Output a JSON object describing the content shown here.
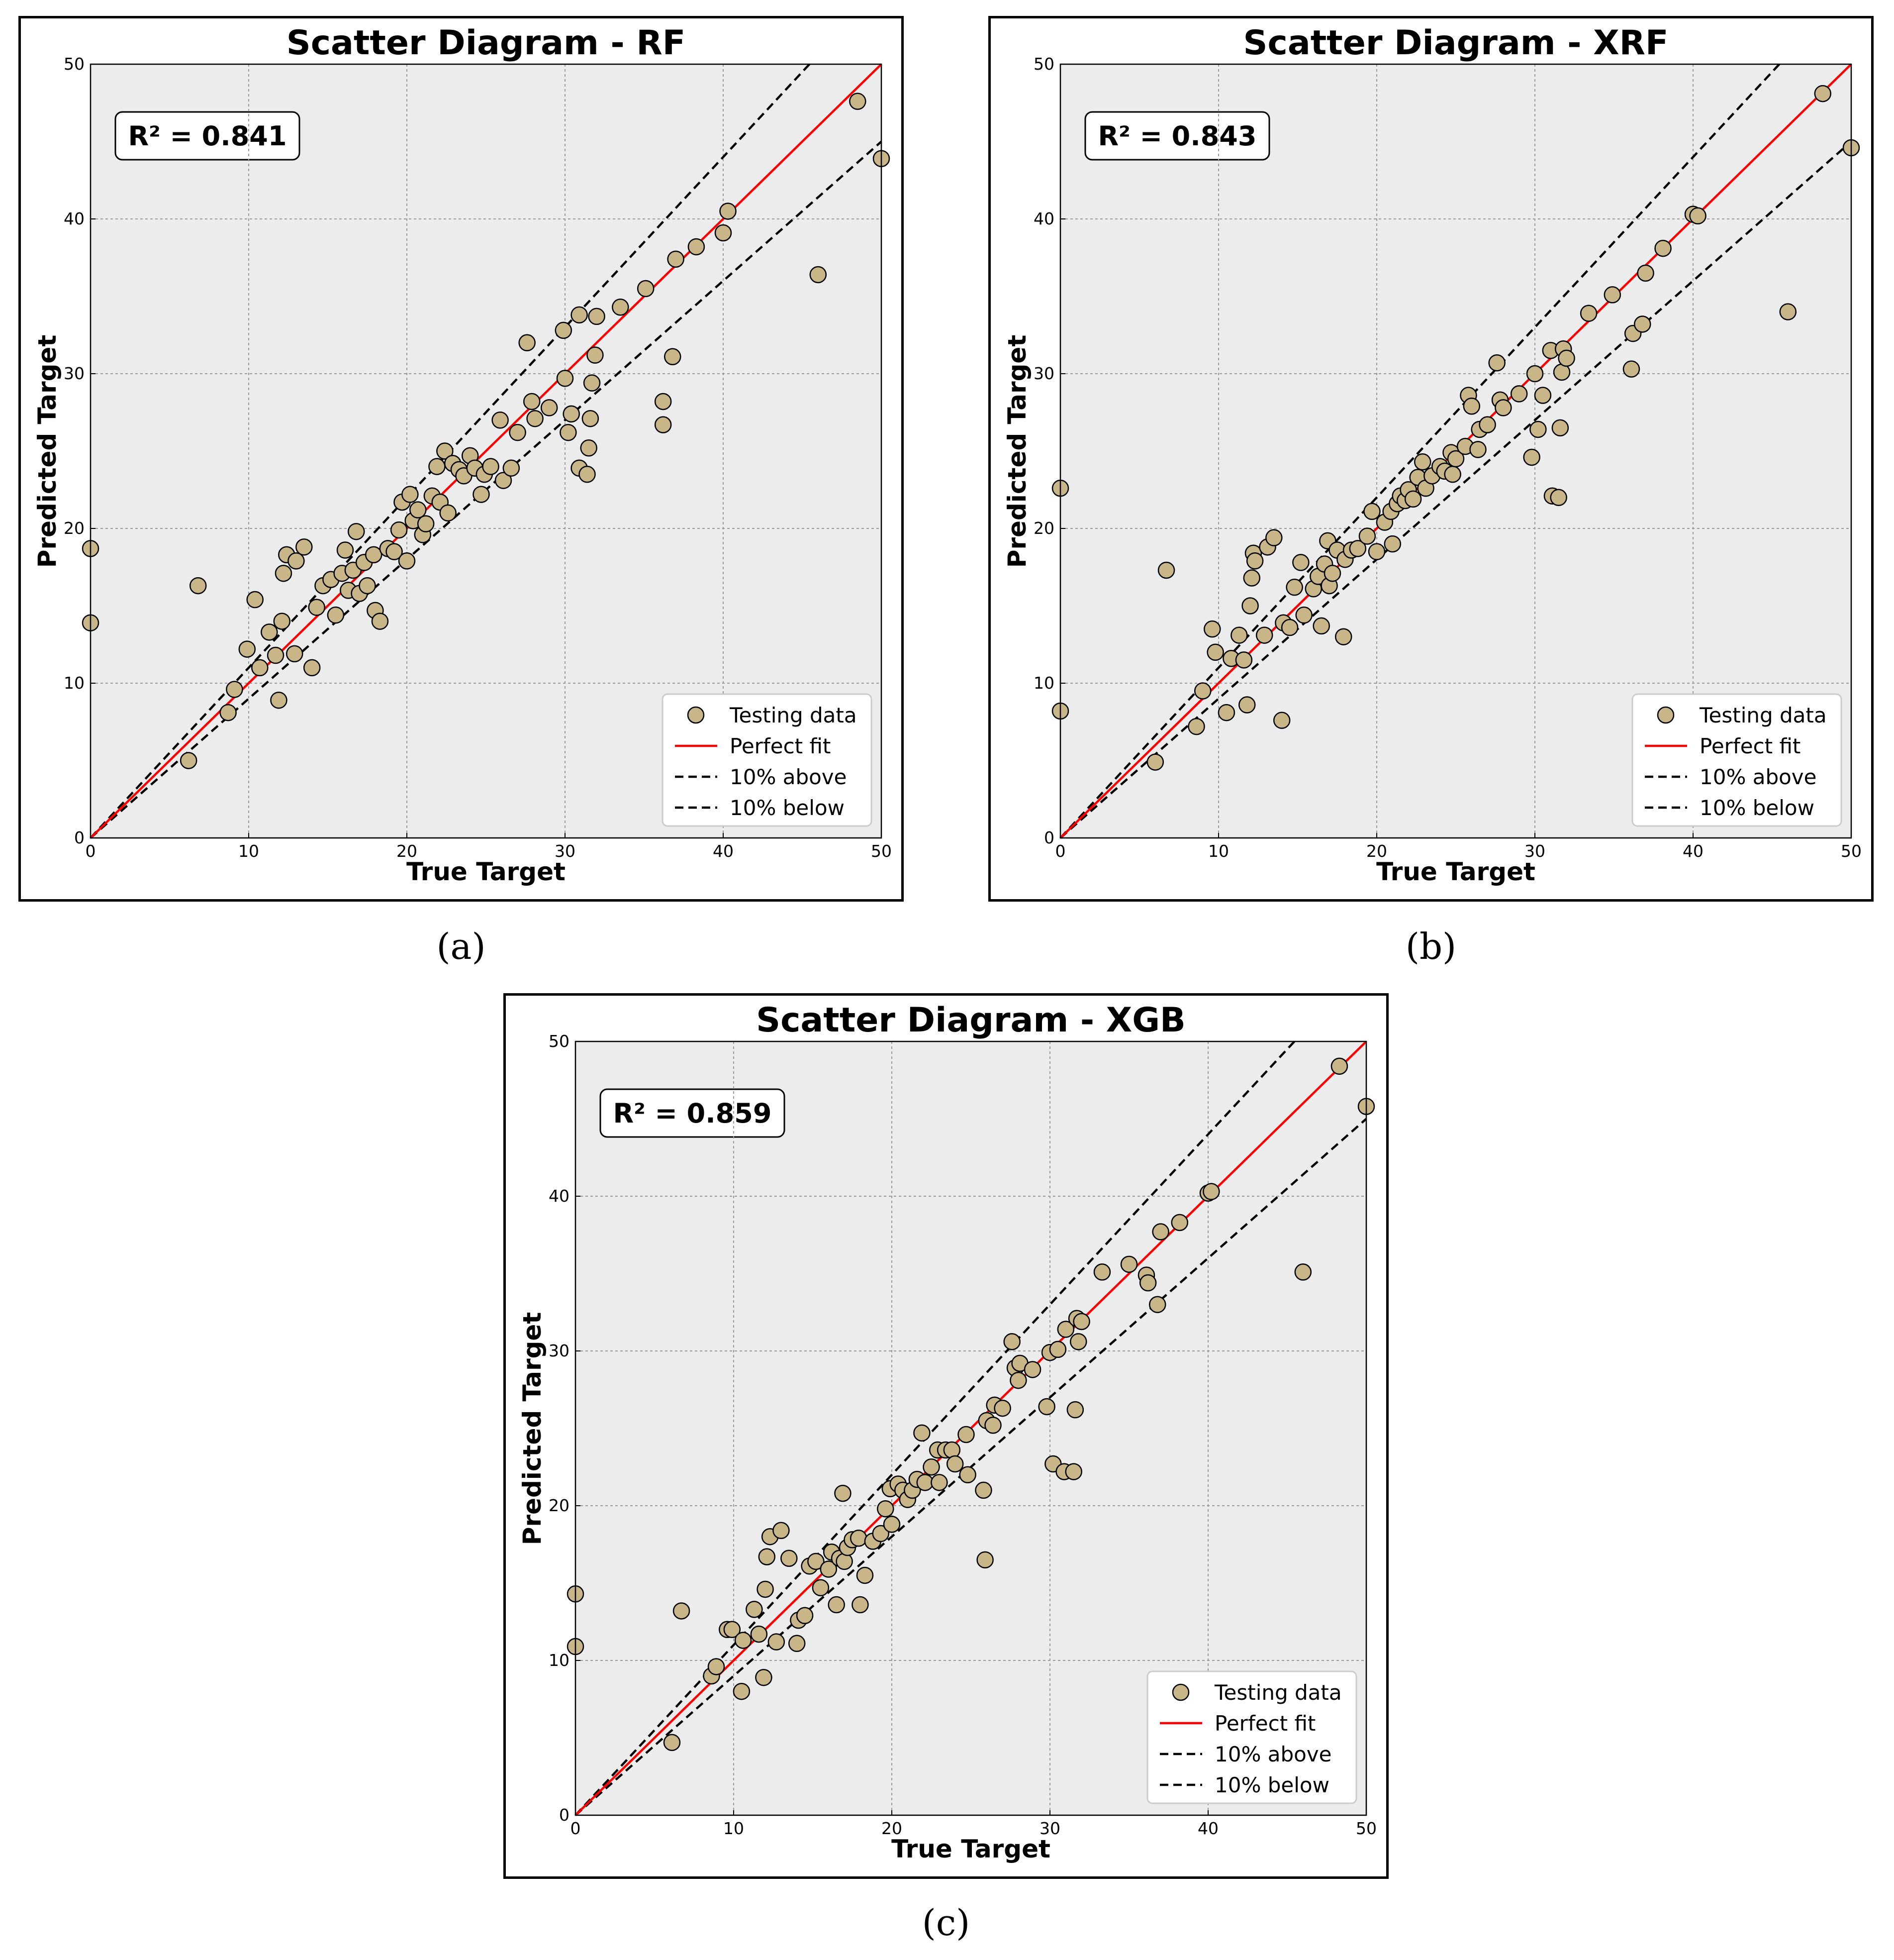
{
  "colors": {
    "plot_bg": "#ececec",
    "grid": "#9a9a9a",
    "marker_fill": "#c8b689",
    "marker_edge": "#000000",
    "perfect_fit": "#ff0000",
    "band": "#000000"
  },
  "chart_data": [
    {
      "type": "scatter",
      "caption": "(a)",
      "title": "Scatter Diagram - RF",
      "xlabel": "True Target",
      "ylabel": "Predicted Target",
      "xlim": [
        0,
        50
      ],
      "ylim": [
        0,
        50
      ],
      "xticks": [
        "0",
        "10",
        "20",
        "30",
        "40",
        "50"
      ],
      "yticks": [
        "0",
        "10",
        "20",
        "30",
        "40",
        "50"
      ],
      "annotation": "R² = 0.841",
      "legend": {
        "placement": "lower-right",
        "entries": [
          "Testing data",
          "Perfect fit",
          "10% above",
          "10% below"
        ]
      },
      "points": [
        [
          0,
          18.7
        ],
        [
          0,
          13.9
        ],
        [
          6.2,
          5.0
        ],
        [
          6.8,
          16.3
        ],
        [
          8.7,
          8.1
        ],
        [
          9.1,
          9.6
        ],
        [
          9.9,
          12.2
        ],
        [
          10.4,
          15.4
        ],
        [
          10.7,
          11.0
        ],
        [
          11.3,
          13.3
        ],
        [
          11.7,
          11.8
        ],
        [
          11.9,
          8.9
        ],
        [
          12.1,
          14.0
        ],
        [
          12.2,
          17.1
        ],
        [
          12.4,
          18.3
        ],
        [
          12.9,
          11.9
        ],
        [
          13.0,
          17.9
        ],
        [
          13.5,
          18.8
        ],
        [
          14.0,
          11.0
        ],
        [
          14.3,
          14.9
        ],
        [
          14.7,
          16.3
        ],
        [
          15.2,
          16.7
        ],
        [
          15.5,
          14.4
        ],
        [
          15.9,
          17.1
        ],
        [
          16.1,
          18.6
        ],
        [
          16.3,
          16.0
        ],
        [
          16.6,
          17.3
        ],
        [
          16.8,
          19.8
        ],
        [
          17.0,
          15.8
        ],
        [
          17.3,
          17.8
        ],
        [
          17.5,
          16.3
        ],
        [
          17.9,
          18.3
        ],
        [
          18.0,
          14.7
        ],
        [
          18.3,
          14.0
        ],
        [
          18.8,
          18.7
        ],
        [
          19.2,
          18.5
        ],
        [
          19.5,
          19.9
        ],
        [
          19.7,
          21.7
        ],
        [
          20.0,
          17.9
        ],
        [
          20.2,
          22.2
        ],
        [
          20.4,
          20.5
        ],
        [
          20.7,
          21.2
        ],
        [
          21.0,
          19.6
        ],
        [
          21.2,
          20.3
        ],
        [
          21.6,
          22.1
        ],
        [
          21.9,
          24.0
        ],
        [
          22.1,
          21.7
        ],
        [
          22.4,
          25.0
        ],
        [
          22.6,
          21.0
        ],
        [
          22.9,
          24.2
        ],
        [
          23.3,
          23.8
        ],
        [
          23.6,
          23.4
        ],
        [
          24.0,
          24.7
        ],
        [
          24.3,
          23.9
        ],
        [
          24.7,
          22.2
        ],
        [
          24.9,
          23.5
        ],
        [
          25.3,
          24.0
        ],
        [
          25.9,
          27.0
        ],
        [
          26.1,
          23.1
        ],
        [
          26.6,
          23.9
        ],
        [
          27.0,
          26.2
        ],
        [
          27.6,
          32.0
        ],
        [
          27.9,
          28.2
        ],
        [
          28.1,
          27.1
        ],
        [
          29.0,
          27.8
        ],
        [
          29.9,
          32.8
        ],
        [
          30.0,
          29.7
        ],
        [
          30.2,
          26.2
        ],
        [
          30.4,
          27.4
        ],
        [
          30.9,
          23.9
        ],
        [
          30.9,
          33.8
        ],
        [
          31.4,
          23.5
        ],
        [
          31.5,
          25.2
        ],
        [
          31.6,
          27.1
        ],
        [
          31.7,
          29.4
        ],
        [
          31.9,
          31.2
        ],
        [
          32.0,
          33.7
        ],
        [
          33.5,
          34.3
        ],
        [
          35.1,
          35.5
        ],
        [
          36.2,
          28.2
        ],
        [
          36.2,
          26.7
        ],
        [
          36.8,
          31.1
        ],
        [
          37.0,
          37.4
        ],
        [
          38.3,
          38.2
        ],
        [
          40.0,
          39.1
        ],
        [
          40.3,
          40.5
        ],
        [
          46.0,
          36.4
        ],
        [
          48.5,
          47.6
        ],
        [
          50.0,
          43.9
        ]
      ]
    },
    {
      "type": "scatter",
      "caption": "(b)",
      "title": "Scatter Diagram - XRF",
      "xlabel": "True Target",
      "ylabel": "Predicted Target",
      "xlim": [
        0,
        50
      ],
      "ylim": [
        0,
        50
      ],
      "xticks": [
        "0",
        "10",
        "20",
        "30",
        "40",
        "50"
      ],
      "yticks": [
        "0",
        "10",
        "20",
        "30",
        "40",
        "50"
      ],
      "annotation": "R² = 0.843",
      "legend": {
        "placement": "lower-right",
        "entries": [
          "Testing data",
          "Perfect fit",
          "10% above",
          "10% below"
        ]
      },
      "points": [
        [
          0,
          22.6
        ],
        [
          0,
          8.2
        ],
        [
          6.0,
          4.9
        ],
        [
          6.7,
          17.3
        ],
        [
          8.6,
          7.2
        ],
        [
          9.0,
          9.5
        ],
        [
          9.6,
          13.5
        ],
        [
          9.8,
          12.0
        ],
        [
          10.5,
          8.1
        ],
        [
          10.8,
          11.6
        ],
        [
          11.3,
          13.1
        ],
        [
          11.6,
          11.5
        ],
        [
          11.8,
          8.6
        ],
        [
          12.0,
          15.0
        ],
        [
          12.1,
          16.8
        ],
        [
          12.2,
          18.4
        ],
        [
          12.3,
          17.9
        ],
        [
          12.9,
          13.1
        ],
        [
          13.1,
          18.8
        ],
        [
          13.5,
          19.4
        ],
        [
          14.0,
          7.6
        ],
        [
          14.1,
          13.9
        ],
        [
          14.5,
          13.6
        ],
        [
          14.8,
          16.2
        ],
        [
          15.2,
          17.8
        ],
        [
          15.4,
          14.4
        ],
        [
          16.0,
          16.1
        ],
        [
          16.3,
          16.9
        ],
        [
          16.5,
          13.7
        ],
        [
          16.7,
          17.7
        ],
        [
          16.9,
          19.2
        ],
        [
          17.0,
          16.3
        ],
        [
          17.2,
          17.1
        ],
        [
          17.5,
          18.6
        ],
        [
          17.9,
          13.0
        ],
        [
          18.0,
          18.0
        ],
        [
          18.4,
          18.6
        ],
        [
          18.8,
          18.7
        ],
        [
          19.4,
          19.5
        ],
        [
          19.7,
          21.1
        ],
        [
          20.0,
          18.5
        ],
        [
          20.5,
          20.4
        ],
        [
          20.9,
          21.1
        ],
        [
          21.0,
          19.0
        ],
        [
          21.3,
          21.6
        ],
        [
          21.5,
          22.1
        ],
        [
          21.8,
          21.8
        ],
        [
          22.0,
          22.5
        ],
        [
          22.3,
          21.9
        ],
        [
          22.6,
          23.3
        ],
        [
          22.9,
          24.3
        ],
        [
          23.1,
          22.6
        ],
        [
          23.5,
          23.4
        ],
        [
          24.0,
          24.0
        ],
        [
          24.3,
          23.7
        ],
        [
          24.7,
          24.9
        ],
        [
          24.8,
          23.5
        ],
        [
          25.0,
          24.5
        ],
        [
          25.6,
          25.3
        ],
        [
          25.8,
          28.6
        ],
        [
          26.0,
          27.9
        ],
        [
          26.4,
          25.1
        ],
        [
          26.5,
          26.4
        ],
        [
          27.0,
          26.7
        ],
        [
          27.6,
          30.7
        ],
        [
          27.8,
          28.3
        ],
        [
          28.0,
          27.8
        ],
        [
          29.0,
          28.7
        ],
        [
          29.8,
          24.6
        ],
        [
          30.0,
          30.0
        ],
        [
          30.2,
          26.4
        ],
        [
          30.5,
          28.6
        ],
        [
          31.0,
          31.5
        ],
        [
          31.1,
          22.1
        ],
        [
          31.5,
          22.0
        ],
        [
          31.6,
          26.5
        ],
        [
          31.7,
          30.1
        ],
        [
          31.8,
          31.6
        ],
        [
          32.0,
          31.0
        ],
        [
          33.4,
          33.9
        ],
        [
          34.9,
          35.1
        ],
        [
          36.1,
          30.3
        ],
        [
          36.2,
          32.6
        ],
        [
          36.8,
          33.2
        ],
        [
          37.0,
          36.5
        ],
        [
          38.1,
          38.1
        ],
        [
          40.0,
          40.3
        ],
        [
          40.3,
          40.2
        ],
        [
          46.0,
          34.0
        ],
        [
          48.2,
          48.1
        ],
        [
          50.0,
          44.6
        ]
      ]
    },
    {
      "type": "scatter",
      "caption": "(c)",
      "title": "Scatter Diagram - XGB",
      "xlabel": "True Target",
      "ylabel": "Predicted Target",
      "xlim": [
        0,
        50
      ],
      "ylim": [
        0,
        50
      ],
      "xticks": [
        "0",
        "10",
        "20",
        "30",
        "40",
        "50"
      ],
      "yticks": [
        "0",
        "10",
        "20",
        "30",
        "40",
        "50"
      ],
      "annotation": "R² = 0.859",
      "legend": {
        "placement": "lower-right",
        "entries": [
          "Testing data",
          "Perfect fit",
          "10% above",
          "10% below"
        ]
      },
      "points": [
        [
          0,
          14.3
        ],
        [
          0,
          10.9
        ],
        [
          6.1,
          4.7
        ],
        [
          6.7,
          13.2
        ],
        [
          8.6,
          9.0
        ],
        [
          8.9,
          9.6
        ],
        [
          9.6,
          12.0
        ],
        [
          9.9,
          12.0
        ],
        [
          10.5,
          8.0
        ],
        [
          10.6,
          11.3
        ],
        [
          11.3,
          13.3
        ],
        [
          11.6,
          11.7
        ],
        [
          11.9,
          8.9
        ],
        [
          12.0,
          14.6
        ],
        [
          12.1,
          16.7
        ],
        [
          12.3,
          18.0
        ],
        [
          12.7,
          11.2
        ],
        [
          13.0,
          18.4
        ],
        [
          13.5,
          16.6
        ],
        [
          14.0,
          11.1
        ],
        [
          14.1,
          12.6
        ],
        [
          14.5,
          12.9
        ],
        [
          14.8,
          16.1
        ],
        [
          15.2,
          16.4
        ],
        [
          15.5,
          14.7
        ],
        [
          16.0,
          15.9
        ],
        [
          16.2,
          17.0
        ],
        [
          16.5,
          13.6
        ],
        [
          16.7,
          16.6
        ],
        [
          16.9,
          20.8
        ],
        [
          17.0,
          16.4
        ],
        [
          17.2,
          17.3
        ],
        [
          17.5,
          17.8
        ],
        [
          17.9,
          17.9
        ],
        [
          18.0,
          13.6
        ],
        [
          18.3,
          15.5
        ],
        [
          18.8,
          17.7
        ],
        [
          19.3,
          18.2
        ],
        [
          19.6,
          19.8
        ],
        [
          19.9,
          21.1
        ],
        [
          20.0,
          18.8
        ],
        [
          20.4,
          21.4
        ],
        [
          20.7,
          21.0
        ],
        [
          21.0,
          20.4
        ],
        [
          21.3,
          21.0
        ],
        [
          21.6,
          21.7
        ],
        [
          21.9,
          24.7
        ],
        [
          22.1,
          21.5
        ],
        [
          22.5,
          22.5
        ],
        [
          22.9,
          23.6
        ],
        [
          23.0,
          21.5
        ],
        [
          23.4,
          23.6
        ],
        [
          23.8,
          23.6
        ],
        [
          24.0,
          22.7
        ],
        [
          24.7,
          24.6
        ],
        [
          24.8,
          22.0
        ],
        [
          25.8,
          21.0
        ],
        [
          25.9,
          16.5
        ],
        [
          26.0,
          25.5
        ],
        [
          26.4,
          25.2
        ],
        [
          26.5,
          26.5
        ],
        [
          27.0,
          26.3
        ],
        [
          27.6,
          30.6
        ],
        [
          27.8,
          28.9
        ],
        [
          28.0,
          28.1
        ],
        [
          28.1,
          29.2
        ],
        [
          28.9,
          28.8
        ],
        [
          29.8,
          26.4
        ],
        [
          30.0,
          29.9
        ],
        [
          30.2,
          22.7
        ],
        [
          30.5,
          30.1
        ],
        [
          30.9,
          22.2
        ],
        [
          31.0,
          31.4
        ],
        [
          31.5,
          22.2
        ],
        [
          31.6,
          26.2
        ],
        [
          31.7,
          32.1
        ],
        [
          31.8,
          30.6
        ],
        [
          32.0,
          31.9
        ],
        [
          33.3,
          35.1
        ],
        [
          35.0,
          35.6
        ],
        [
          36.1,
          34.9
        ],
        [
          36.2,
          34.4
        ],
        [
          36.8,
          33.0
        ],
        [
          37.0,
          37.7
        ],
        [
          38.2,
          38.3
        ],
        [
          40.0,
          40.2
        ],
        [
          40.2,
          40.3
        ],
        [
          46.0,
          35.1
        ],
        [
          48.3,
          48.4
        ],
        [
          50.0,
          45.8
        ]
      ]
    }
  ]
}
